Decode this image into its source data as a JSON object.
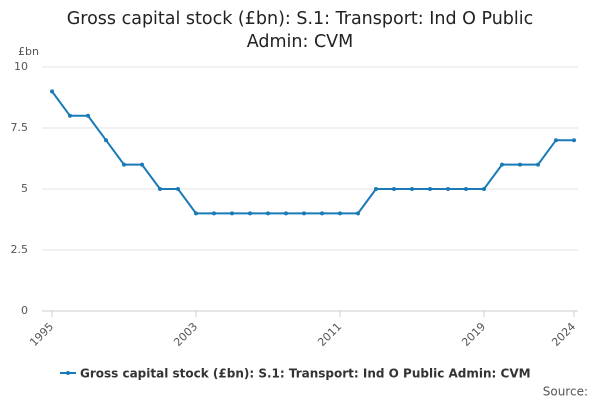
{
  "chart_data": {
    "type": "line",
    "title": "Gross capital stock (£bn): S.1: Transport: Ind O Public Admin: CVM",
    "y_label": "£bn",
    "source": "Source:",
    "x": [
      1995,
      1996,
      1997,
      1998,
      1999,
      2000,
      2001,
      2002,
      2003,
      2004,
      2005,
      2006,
      2007,
      2008,
      2009,
      2010,
      2011,
      2012,
      2013,
      2014,
      2015,
      2016,
      2017,
      2018,
      2019,
      2020,
      2021,
      2022,
      2023,
      2024
    ],
    "series": [
      {
        "name": "Gross capital stock (£bn): S.1: Transport: Ind O Public Admin: CVM",
        "color": "#1a7ab8",
        "values": [
          9,
          8,
          8,
          7,
          6,
          6,
          5,
          5,
          4,
          4,
          4,
          4,
          4,
          4,
          4,
          4,
          4,
          4,
          5,
          5,
          5,
          5,
          5,
          5,
          5,
          6,
          6,
          6,
          7,
          7
        ]
      }
    ],
    "xlim": [
      1995,
      2024
    ],
    "xticks": [
      1995,
      2003,
      2011,
      2019,
      2024
    ],
    "ylim": [
      0,
      10
    ],
    "yticks": [
      0,
      2.5,
      5,
      7.5,
      10
    ],
    "grid": true
  }
}
